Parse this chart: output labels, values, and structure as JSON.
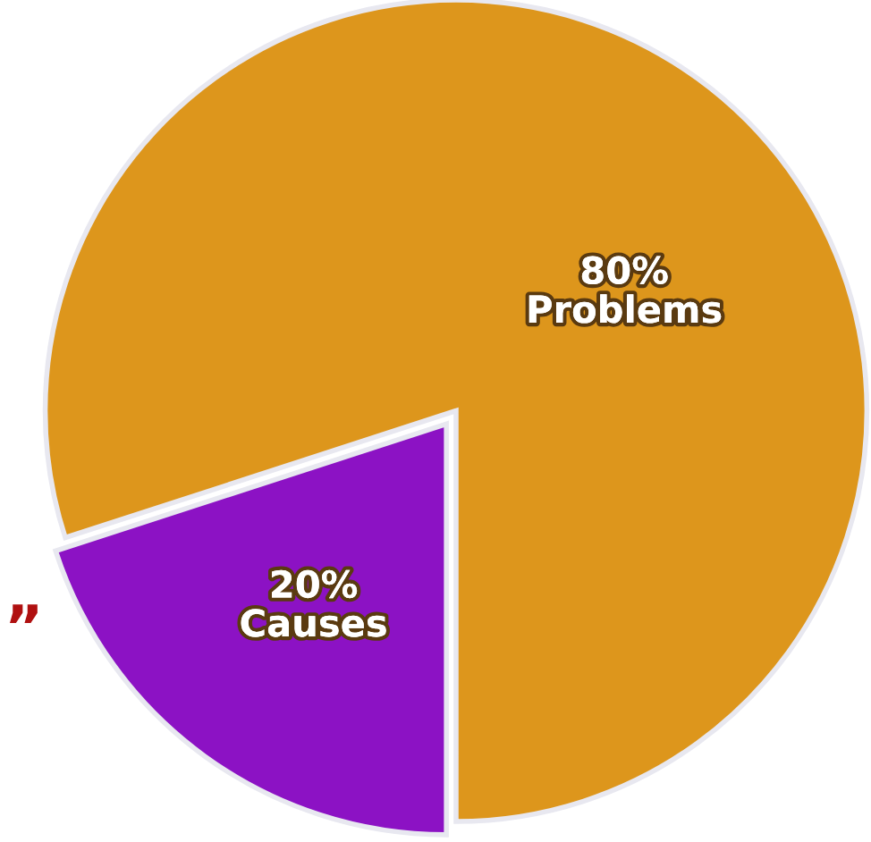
{
  "chart_data": {
    "type": "pie",
    "categories": [
      "Problems",
      "Causes"
    ],
    "values": [
      80,
      20
    ],
    "colors": [
      "#dd961c",
      "#8c12c4"
    ],
    "value_labels": [
      "80%",
      "20%"
    ],
    "annotations": [
      "”"
    ]
  }
}
